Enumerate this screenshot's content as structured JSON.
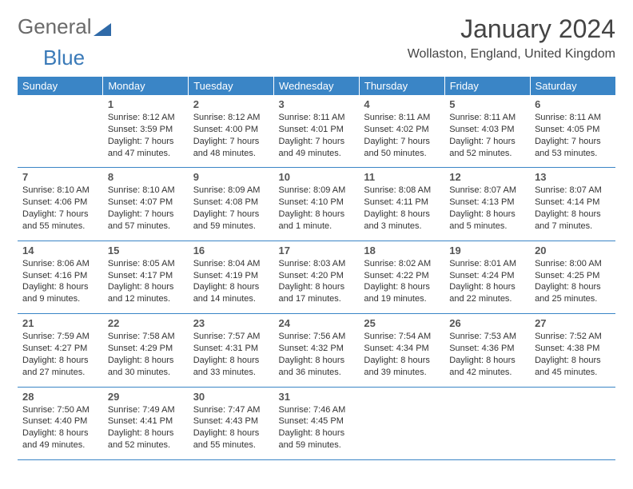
{
  "logo": {
    "text1": "General",
    "text2": "Blue"
  },
  "title": "January 2024",
  "location": "Wollaston, England, United Kingdom",
  "header_bg": "#3a85c6",
  "days_of_week": [
    "Sunday",
    "Monday",
    "Tuesday",
    "Wednesday",
    "Thursday",
    "Friday",
    "Saturday"
  ],
  "weeks": [
    [
      null,
      {
        "n": "1",
        "sr": "8:12 AM",
        "ss": "3:59 PM",
        "dl": "7 hours and 47 minutes."
      },
      {
        "n": "2",
        "sr": "8:12 AM",
        "ss": "4:00 PM",
        "dl": "7 hours and 48 minutes."
      },
      {
        "n": "3",
        "sr": "8:11 AM",
        "ss": "4:01 PM",
        "dl": "7 hours and 49 minutes."
      },
      {
        "n": "4",
        "sr": "8:11 AM",
        "ss": "4:02 PM",
        "dl": "7 hours and 50 minutes."
      },
      {
        "n": "5",
        "sr": "8:11 AM",
        "ss": "4:03 PM",
        "dl": "7 hours and 52 minutes."
      },
      {
        "n": "6",
        "sr": "8:11 AM",
        "ss": "4:05 PM",
        "dl": "7 hours and 53 minutes."
      }
    ],
    [
      {
        "n": "7",
        "sr": "8:10 AM",
        "ss": "4:06 PM",
        "dl": "7 hours and 55 minutes."
      },
      {
        "n": "8",
        "sr": "8:10 AM",
        "ss": "4:07 PM",
        "dl": "7 hours and 57 minutes."
      },
      {
        "n": "9",
        "sr": "8:09 AM",
        "ss": "4:08 PM",
        "dl": "7 hours and 59 minutes."
      },
      {
        "n": "10",
        "sr": "8:09 AM",
        "ss": "4:10 PM",
        "dl": "8 hours and 1 minute."
      },
      {
        "n": "11",
        "sr": "8:08 AM",
        "ss": "4:11 PM",
        "dl": "8 hours and 3 minutes."
      },
      {
        "n": "12",
        "sr": "8:07 AM",
        "ss": "4:13 PM",
        "dl": "8 hours and 5 minutes."
      },
      {
        "n": "13",
        "sr": "8:07 AM",
        "ss": "4:14 PM",
        "dl": "8 hours and 7 minutes."
      }
    ],
    [
      {
        "n": "14",
        "sr": "8:06 AM",
        "ss": "4:16 PM",
        "dl": "8 hours and 9 minutes."
      },
      {
        "n": "15",
        "sr": "8:05 AM",
        "ss": "4:17 PM",
        "dl": "8 hours and 12 minutes."
      },
      {
        "n": "16",
        "sr": "8:04 AM",
        "ss": "4:19 PM",
        "dl": "8 hours and 14 minutes."
      },
      {
        "n": "17",
        "sr": "8:03 AM",
        "ss": "4:20 PM",
        "dl": "8 hours and 17 minutes."
      },
      {
        "n": "18",
        "sr": "8:02 AM",
        "ss": "4:22 PM",
        "dl": "8 hours and 19 minutes."
      },
      {
        "n": "19",
        "sr": "8:01 AM",
        "ss": "4:24 PM",
        "dl": "8 hours and 22 minutes."
      },
      {
        "n": "20",
        "sr": "8:00 AM",
        "ss": "4:25 PM",
        "dl": "8 hours and 25 minutes."
      }
    ],
    [
      {
        "n": "21",
        "sr": "7:59 AM",
        "ss": "4:27 PM",
        "dl": "8 hours and 27 minutes."
      },
      {
        "n": "22",
        "sr": "7:58 AM",
        "ss": "4:29 PM",
        "dl": "8 hours and 30 minutes."
      },
      {
        "n": "23",
        "sr": "7:57 AM",
        "ss": "4:31 PM",
        "dl": "8 hours and 33 minutes."
      },
      {
        "n": "24",
        "sr": "7:56 AM",
        "ss": "4:32 PM",
        "dl": "8 hours and 36 minutes."
      },
      {
        "n": "25",
        "sr": "7:54 AM",
        "ss": "4:34 PM",
        "dl": "8 hours and 39 minutes."
      },
      {
        "n": "26",
        "sr": "7:53 AM",
        "ss": "4:36 PM",
        "dl": "8 hours and 42 minutes."
      },
      {
        "n": "27",
        "sr": "7:52 AM",
        "ss": "4:38 PM",
        "dl": "8 hours and 45 minutes."
      }
    ],
    [
      {
        "n": "28",
        "sr": "7:50 AM",
        "ss": "4:40 PM",
        "dl": "8 hours and 49 minutes."
      },
      {
        "n": "29",
        "sr": "7:49 AM",
        "ss": "4:41 PM",
        "dl": "8 hours and 52 minutes."
      },
      {
        "n": "30",
        "sr": "7:47 AM",
        "ss": "4:43 PM",
        "dl": "8 hours and 55 minutes."
      },
      {
        "n": "31",
        "sr": "7:46 AM",
        "ss": "4:45 PM",
        "dl": "8 hours and 59 minutes."
      },
      null,
      null,
      null
    ]
  ],
  "labels": {
    "sunrise": "Sunrise:",
    "sunset": "Sunset:",
    "daylight": "Daylight:"
  }
}
